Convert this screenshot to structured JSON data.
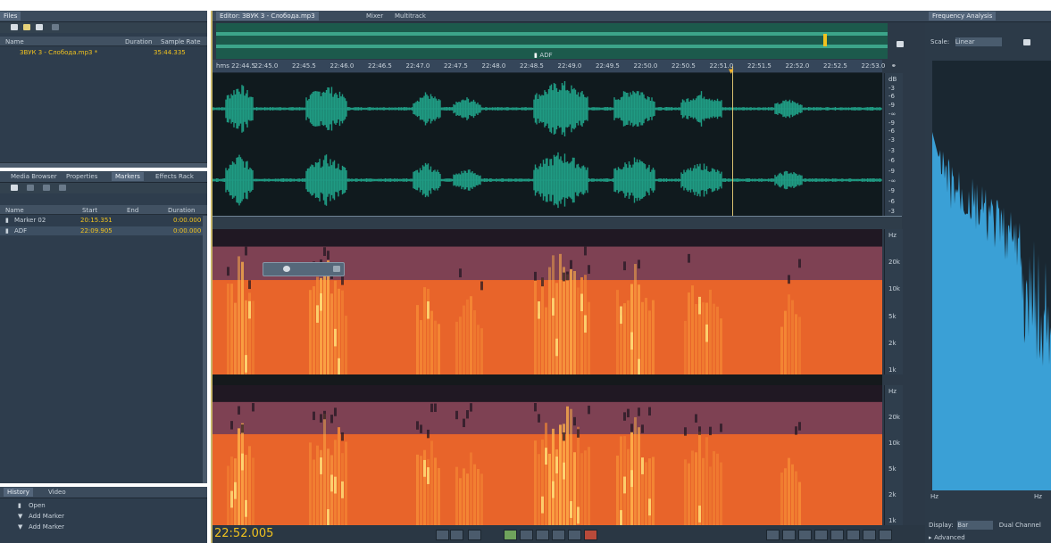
{
  "files_panel": {
    "title": "Files",
    "columns": [
      "Name",
      "Duration",
      "Sample Rate"
    ],
    "items": [
      {
        "name": "ЗВУК 3 - Слобода.mp3 *",
        "duration": "35:44.335"
      }
    ]
  },
  "markers_panel": {
    "tabs": [
      "Media Browser",
      "Properties",
      "Markers",
      "Effects Rack"
    ],
    "active_tab": "Markers",
    "columns": [
      "Name",
      "Start",
      "End",
      "Duration"
    ],
    "rows": [
      {
        "name": "Marker 02",
        "start": "20:15.351",
        "duration": "0:00.000"
      },
      {
        "name": "ADF",
        "start": "22:09.905",
        "duration": "0:00.000"
      }
    ]
  },
  "history_panel": {
    "tabs": [
      "History",
      "Video"
    ],
    "items": [
      "Open",
      "Add Marker",
      "Add Marker"
    ]
  },
  "editor": {
    "tabs": [
      "Editor: ЗВУК 3 - Слобода.mp3",
      "Mixer",
      "Multitrack"
    ],
    "marker_label": "ADF",
    "ruler_ticks": [
      "hms 22:44.5",
      "22:45.0",
      "22:45.5",
      "22:46.0",
      "22:46.5",
      "22:47.0",
      "22:47.5",
      "22:48.0",
      "22:48.5",
      "22:49.0",
      "22:49.5",
      "22:50.0",
      "22:50.5",
      "22:51.0",
      "22:51.5",
      "22:52.0",
      "22:52.5",
      "22:53.0"
    ],
    "wave_scale_top": [
      "dB",
      "-3",
      "-6",
      "-9",
      "-∞",
      "-9",
      "-6",
      "-3"
    ],
    "wave_scale_bottom": [
      "-3",
      "-6",
      "-9",
      "-∞",
      "-9",
      "-6",
      "-3"
    ],
    "spectro_scale": [
      "Hz",
      "20k",
      "10k",
      "5k",
      "2k",
      "1k"
    ],
    "spectro_scale_bottom": [
      "Hz",
      "20k",
      "10k",
      "5k",
      "2k",
      "1k"
    ],
    "current_time": "22:52.005"
  },
  "freq_panel": {
    "title": "Frequency Analysis",
    "scale_label": "Scale:",
    "scale_value": "Linear",
    "display_label": "Display:",
    "display_value": "Bar",
    "channel_label": "Dual Channel",
    "advanced_label": "Advanced",
    "axis_left": "Hz",
    "axis_right": "Hz"
  },
  "colors": {
    "waveform": "#1f9b83",
    "spectrogram_hot": "#f06a2a",
    "accent": "#f0c21f",
    "freq_fill": "#3aa0d6"
  }
}
